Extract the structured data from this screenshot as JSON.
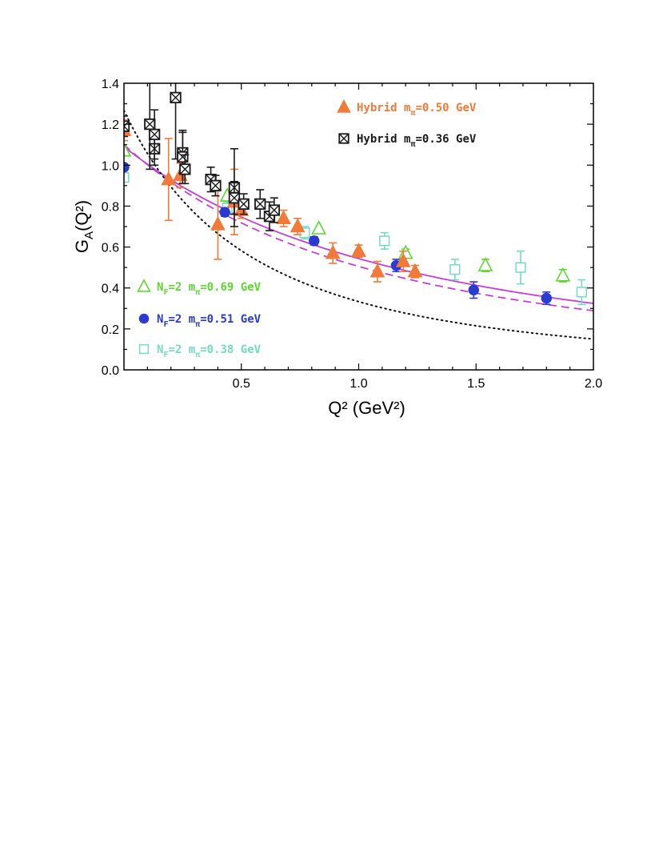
{
  "chart_data": {
    "type": "scatter",
    "title": "",
    "xlabel": "Q²  (GeV²)",
    "ylabel": "G_A(Q²)",
    "xlim": [
      0.0,
      2.0
    ],
    "ylim": [
      0.0,
      1.4
    ],
    "x_ticks": [
      "0.5",
      "1.0",
      "1.5",
      "2.0"
    ],
    "y_ticks": [
      "0.0",
      "0.2",
      "0.4",
      "0.6",
      "0.8",
      "1.0",
      "1.2",
      "1.4"
    ],
    "series": [
      {
        "name": "Hybrid m_π=0.50 GeV",
        "legend_main": "Hybrid m",
        "legend_sub": "π",
        "legend_tail": "=0.50 GeV",
        "marker": "filled-triangle",
        "color": "#f07a3a",
        "points": [
          {
            "x": 0.0,
            "y": 1.17,
            "err": 0.05
          },
          {
            "x": 0.19,
            "y": 0.93,
            "err": 0.2
          },
          {
            "x": 0.24,
            "y": 0.95,
            "err": 0.06
          },
          {
            "x": 0.4,
            "y": 0.71,
            "err": 0.17
          },
          {
            "x": 0.47,
            "y": 0.82,
            "err": 0.16
          },
          {
            "x": 0.5,
            "y": 0.78,
            "err": 0.04
          },
          {
            "x": 0.68,
            "y": 0.74,
            "err": 0.04
          },
          {
            "x": 0.74,
            "y": 0.7,
            "err": 0.04
          },
          {
            "x": 0.89,
            "y": 0.57,
            "err": 0.05
          },
          {
            "x": 1.0,
            "y": 0.58,
            "err": 0.03
          },
          {
            "x": 1.08,
            "y": 0.48,
            "err": 0.05
          },
          {
            "x": 1.19,
            "y": 0.53,
            "err": 0.05
          },
          {
            "x": 1.24,
            "y": 0.48,
            "err": 0.03
          }
        ]
      },
      {
        "name": "Hybrid m_π=0.36 GeV",
        "legend_main": "Hybrid m",
        "legend_sub": "π",
        "legend_tail": "=0.36 GeV",
        "marker": "crossed-square",
        "color": "#1a1a1a",
        "points": [
          {
            "x": 0.0,
            "y": 1.19,
            "err": 0.05
          },
          {
            "x": 0.11,
            "y": 1.2,
            "err": 0.22
          },
          {
            "x": 0.13,
            "y": 1.08,
            "err": 0.08
          },
          {
            "x": 0.13,
            "y": 1.15,
            "err": 0.12
          },
          {
            "x": 0.22,
            "y": 1.33,
            "err": 0.3
          },
          {
            "x": 0.25,
            "y": 1.06,
            "err": 0.1
          },
          {
            "x": 0.25,
            "y": 1.04,
            "err": 0.13
          },
          {
            "x": 0.26,
            "y": 0.98,
            "err": 0.07
          },
          {
            "x": 0.37,
            "y": 0.93,
            "err": 0.06
          },
          {
            "x": 0.39,
            "y": 0.9,
            "err": 0.05
          },
          {
            "x": 0.47,
            "y": 0.89,
            "err": 0.19
          },
          {
            "x": 0.47,
            "y": 0.84,
            "err": 0.08
          },
          {
            "x": 0.51,
            "y": 0.81,
            "err": 0.05
          },
          {
            "x": 0.58,
            "y": 0.81,
            "err": 0.07
          },
          {
            "x": 0.62,
            "y": 0.75,
            "err": 0.07
          },
          {
            "x": 0.64,
            "y": 0.78,
            "err": 0.06
          }
        ]
      },
      {
        "name": "N_F=2 m_π=0.69 GeV",
        "legend_main": "N",
        "legend_main_sub": "F",
        "legend_mid": "=2 m",
        "legend_sub": "π",
        "legend_tail": "=0.69 GeV",
        "marker": "open-triangle",
        "color": "#5fd634",
        "points": [
          {
            "x": 0.0,
            "y": 1.07,
            "err": 0.0
          },
          {
            "x": 0.44,
            "y": 0.85,
            "err": 0.0
          },
          {
            "x": 0.83,
            "y": 0.69,
            "err": 0.0
          },
          {
            "x": 1.2,
            "y": 0.57,
            "err": 0.02
          },
          {
            "x": 1.54,
            "y": 0.51,
            "err": 0.03
          },
          {
            "x": 1.87,
            "y": 0.46,
            "err": 0.03
          }
        ]
      },
      {
        "name": "N_F=2 m_π=0.51 GeV",
        "legend_main": "N",
        "legend_main_sub": "F",
        "legend_mid": "=2 m",
        "legend_sub": "π",
        "legend_tail": "=0.51 GeV",
        "marker": "filled-circle",
        "color": "#2a3bd1",
        "points": [
          {
            "x": 0.0,
            "y": 0.99,
            "err": 0.0
          },
          {
            "x": 0.43,
            "y": 0.77,
            "err": 0.02
          },
          {
            "x": 0.81,
            "y": 0.63,
            "err": 0.02
          },
          {
            "x": 1.16,
            "y": 0.51,
            "err": 0.03
          },
          {
            "x": 1.49,
            "y": 0.39,
            "err": 0.04
          },
          {
            "x": 1.8,
            "y": 0.35,
            "err": 0.03
          }
        ]
      },
      {
        "name": "N_F=2 m_π=0.38 GeV",
        "legend_main": "N",
        "legend_main_sub": "F",
        "legend_mid": "=2 m",
        "legend_sub": "π",
        "legend_tail": "=0.38 GeV",
        "marker": "open-square",
        "color": "#77d8c4",
        "points": [
          {
            "x": 0.0,
            "y": 0.94,
            "err": 0.0
          },
          {
            "x": 0.44,
            "y": 0.79,
            "err": 0.03
          },
          {
            "x": 0.77,
            "y": 0.67,
            "err": 0.03
          },
          {
            "x": 1.11,
            "y": 0.63,
            "err": 0.04
          },
          {
            "x": 1.41,
            "y": 0.49,
            "err": 0.05
          },
          {
            "x": 1.69,
            "y": 0.5,
            "err": 0.08
          },
          {
            "x": 1.95,
            "y": 0.38,
            "err": 0.06
          }
        ]
      }
    ],
    "curves": [
      {
        "name": "dipole-fit-solid",
        "style": "solid",
        "color": "#c43fd6",
        "ga0": 1.09,
        "mass": 1.55
      },
      {
        "name": "dipole-fit-dashed",
        "style": "dashed",
        "color": "#c43fd6",
        "ga0": 1.1,
        "mass": 1.45
      },
      {
        "name": "experiment-dotted",
        "style": "dotted",
        "color": "#111111",
        "ga0": 1.267,
        "mass": 1.026
      }
    ],
    "legend_top": [
      "Hybrid m_π=0.50 GeV",
      "Hybrid m_π=0.36 GeV"
    ],
    "legend_bottom": [
      "N_F=2 m_π=0.69 GeV",
      "N_F=2 m_π=0.51 GeV",
      "N_F=2 m_π=0.38 GeV"
    ],
    "legend_placement": "top-right and bottom-left"
  }
}
